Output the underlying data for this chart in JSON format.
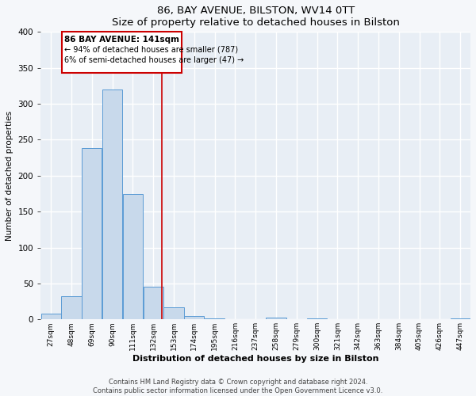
{
  "title": "86, BAY AVENUE, BILSTON, WV14 0TT",
  "subtitle": "Size of property relative to detached houses in Bilston",
  "xlabel": "Distribution of detached houses by size in Bilston",
  "ylabel": "Number of detached properties",
  "bar_labels": [
    "27sqm",
    "48sqm",
    "69sqm",
    "90sqm",
    "111sqm",
    "132sqm",
    "153sqm",
    "174sqm",
    "195sqm",
    "216sqm",
    "237sqm",
    "258sqm",
    "279sqm",
    "300sqm",
    "321sqm",
    "342sqm",
    "363sqm",
    "384sqm",
    "405sqm",
    "426sqm",
    "447sqm"
  ],
  "bar_values": [
    8,
    32,
    238,
    320,
    175,
    46,
    17,
    5,
    2,
    0,
    0,
    3,
    0,
    2,
    0,
    0,
    0,
    0,
    0,
    0,
    2
  ],
  "bar_color": "#c8d9eb",
  "bar_edge_color": "#5b9bd5",
  "property_line_label": "86 BAY AVENUE: 141sqm",
  "annotation_line1": "← 94% of detached houses are smaller (787)",
  "annotation_line2": "6% of semi-detached houses are larger (47) →",
  "box_color": "#cc0000",
  "vline_color": "#cc0000",
  "bg_color": "#e8eef5",
  "grid_color": "#ffffff",
  "fig_bg_color": "#f5f7fa",
  "ylim": [
    0,
    400
  ],
  "yticks": [
    0,
    50,
    100,
    150,
    200,
    250,
    300,
    350,
    400
  ],
  "footnote1": "Contains HM Land Registry data © Crown copyright and database right 2024.",
  "footnote2": "Contains public sector information licensed under the Open Government Licence v3.0."
}
